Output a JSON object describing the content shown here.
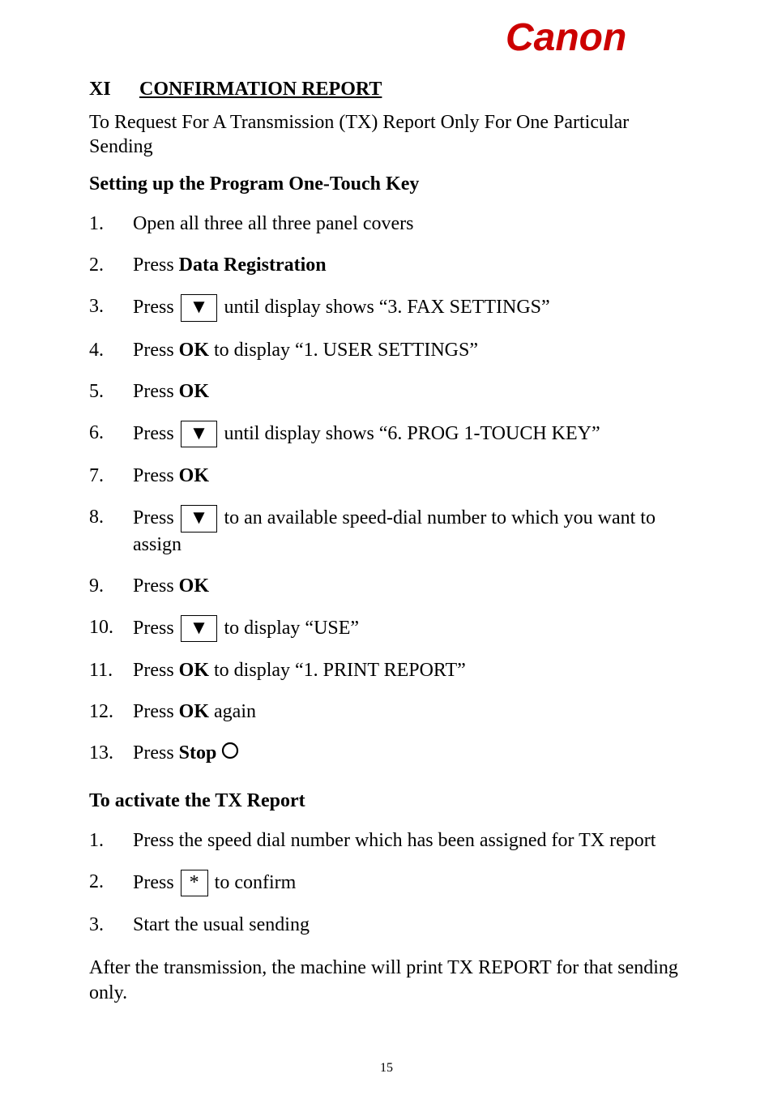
{
  "logo": {
    "name": "canon-logo",
    "fill": "#cc0000",
    "text": "Canon"
  },
  "title": {
    "roman": "XI",
    "text": "CONFIRMATION REPORT"
  },
  "intro": "To Request For A Transmission (TX) Report Only For One Particular Sending",
  "subhead1": "Setting up the Program One-Touch Key",
  "steps1": [
    {
      "n": "1.",
      "parts": [
        {
          "t": "Open all three all three panel covers"
        }
      ]
    },
    {
      "n": "2.",
      "parts": [
        {
          "t": "Press  "
        },
        {
          "t": "Data Registration",
          "bold": true
        }
      ]
    },
    {
      "n": "3.",
      "parts": [
        {
          "t": "Press   "
        },
        {
          "key": "▼"
        },
        {
          "t": "   until display shows  \"3. FAX SETTINGS\""
        }
      ]
    },
    {
      "n": "4.",
      "parts": [
        {
          "t": "Press  "
        },
        {
          "t": "OK",
          "bold": true
        },
        {
          "t": "  to display  \"1. USER SETTINGS\""
        }
      ]
    },
    {
      "n": "5.",
      "parts": [
        {
          "t": "Press  "
        },
        {
          "t": "OK",
          "bold": true
        }
      ]
    },
    {
      "n": "6.",
      "parts": [
        {
          "t": "Press   "
        },
        {
          "key": "▼"
        },
        {
          "t": "   until display shows  \"6. PROG 1-TOUCH KEY\""
        }
      ]
    },
    {
      "n": "7.",
      "parts": [
        {
          "t": "Press  "
        },
        {
          "t": "OK",
          "bold": true
        }
      ]
    },
    {
      "n": "8.",
      "parts": [
        {
          "t": "Press   "
        },
        {
          "key": "▼"
        },
        {
          "t": "   to an available speed-dial number to which you want to assign"
        }
      ]
    },
    {
      "n": "9.",
      "parts": [
        {
          "t": "Press  "
        },
        {
          "t": "OK",
          "bold": true
        }
      ]
    },
    {
      "n": "10.",
      "parts": [
        {
          "t": "Press   "
        },
        {
          "key": "▼"
        },
        {
          "t": "   to display  \"USE\""
        }
      ]
    },
    {
      "n": "11.",
      "parts": [
        {
          "t": "Press  "
        },
        {
          "t": "OK",
          "bold": true
        },
        {
          "t": "  to display  \"1. PRINT REPORT\""
        }
      ]
    },
    {
      "n": "12.",
      "parts": [
        {
          "t": "Press  "
        },
        {
          "t": "OK",
          "bold": true
        },
        {
          "t": "  again"
        }
      ]
    },
    {
      "n": "13.",
      "parts": [
        {
          "t": "Press  "
        },
        {
          "t": "Stop",
          "bold": true
        },
        {
          "t": "  "
        },
        {
          "circle": true
        }
      ]
    }
  ],
  "subhead2": "To activate the TX Report",
  "steps2": [
    {
      "n": "1.",
      "parts": [
        {
          "t": "Press the speed dial number which has been assigned for TX report"
        }
      ]
    },
    {
      "n": "2.",
      "parts": [
        {
          "t": "Press   "
        },
        {
          "key": "*"
        },
        {
          "t": "   to confirm"
        }
      ]
    },
    {
      "n": "3.",
      "parts": [
        {
          "t": "Start the usual sending"
        }
      ]
    }
  ],
  "closing": "After the transmission, the machine will print TX REPORT for that sending only.",
  "page_number": "15",
  "colors": {
    "text": "#000000",
    "background": "#ffffff",
    "logo": "#cc0000"
  }
}
